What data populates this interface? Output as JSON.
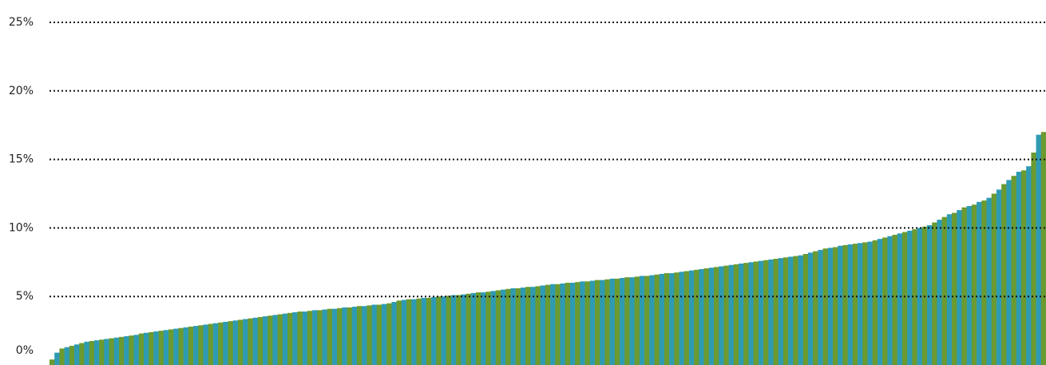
{
  "chart_data": {
    "type": "bar",
    "values": [
      0.4,
      0.9,
      1.2,
      1.3,
      1.4,
      1.5,
      1.6,
      1.7,
      1.75,
      1.8,
      1.85,
      1.9,
      1.95,
      2.0,
      2.05,
      2.1,
      2.15,
      2.2,
      2.3,
      2.35,
      2.4,
      2.45,
      2.5,
      2.55,
      2.6,
      2.65,
      2.7,
      2.75,
      2.8,
      2.85,
      2.9,
      2.95,
      3.0,
      3.05,
      3.1,
      3.15,
      3.2,
      3.25,
      3.3,
      3.35,
      3.4,
      3.45,
      3.5,
      3.55,
      3.6,
      3.65,
      3.7,
      3.75,
      3.8,
      3.85,
      3.9,
      3.9,
      3.95,
      4.0,
      4.0,
      4.05,
      4.1,
      4.1,
      4.15,
      4.2,
      4.2,
      4.25,
      4.3,
      4.3,
      4.35,
      4.4,
      4.4,
      4.45,
      4.5,
      4.6,
      4.7,
      4.75,
      4.8,
      4.8,
      4.85,
      4.9,
      4.9,
      4.95,
      5.0,
      5.0,
      5.05,
      5.1,
      5.1,
      5.15,
      5.2,
      5.25,
      5.3,
      5.3,
      5.35,
      5.4,
      5.45,
      5.5,
      5.55,
      5.6,
      5.6,
      5.65,
      5.7,
      5.7,
      5.75,
      5.8,
      5.85,
      5.9,
      5.9,
      5.95,
      6.0,
      6.0,
      6.05,
      6.1,
      6.1,
      6.15,
      6.2,
      6.2,
      6.25,
      6.3,
      6.3,
      6.35,
      6.4,
      6.4,
      6.45,
      6.5,
      6.5,
      6.55,
      6.6,
      6.65,
      6.7,
      6.7,
      6.75,
      6.8,
      6.85,
      6.9,
      6.95,
      7.0,
      7.05,
      7.1,
      7.15,
      7.2,
      7.25,
      7.3,
      7.35,
      7.4,
      7.45,
      7.5,
      7.55,
      7.6,
      7.65,
      7.7,
      7.75,
      7.8,
      7.85,
      7.9,
      7.95,
      8.0,
      8.1,
      8.2,
      8.3,
      8.4,
      8.5,
      8.55,
      8.6,
      8.7,
      8.75,
      8.8,
      8.85,
      8.9,
      8.95,
      9.0,
      9.1,
      9.2,
      9.3,
      9.4,
      9.5,
      9.6,
      9.7,
      9.8,
      9.9,
      10.0,
      10.1,
      10.2,
      10.4,
      10.6,
      10.8,
      11.0,
      11.1,
      11.3,
      11.5,
      11.6,
      11.7,
      11.9,
      12.0,
      12.2,
      12.5,
      12.8,
      13.2,
      13.5,
      13.8,
      14.1,
      14.2,
      14.5,
      15.5,
      16.8,
      17.0
    ],
    "colors": [
      "#6b9a30",
      "#2e9bb3"
    ],
    "ylim": [
      0,
      25
    ],
    "yticks": [
      {
        "value": 0,
        "label": "0%"
      },
      {
        "value": 5,
        "label": "5%"
      },
      {
        "value": 10,
        "label": "10%"
      },
      {
        "value": 15,
        "label": "15%"
      },
      {
        "value": 20,
        "label": "20%"
      },
      {
        "value": 25,
        "label": "25%"
      }
    ],
    "grid": true
  }
}
